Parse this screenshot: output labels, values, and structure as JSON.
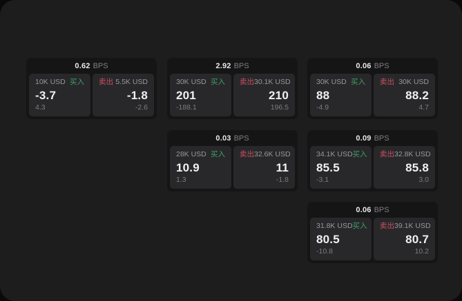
{
  "labels": {
    "unit": "BPS",
    "buy": "买入",
    "sell": "卖出"
  },
  "colors": {
    "outer_bg": "#0a0a0a",
    "window_bg": "#1d1d1e",
    "card_bg": "#151516",
    "panel_bg": "#28282a",
    "buy_green": "#3da065",
    "sell_red": "#c95063"
  },
  "cards": [
    {
      "bps": "0.62",
      "col": 1,
      "row": 1,
      "buy": {
        "amount": "10K USD",
        "value": "-3.7",
        "sub": "4.3"
      },
      "sell": {
        "amount": "5.5K USD",
        "value": "-1.8",
        "sub": "-2.6"
      }
    },
    {
      "bps": "2.92",
      "col": 2,
      "row": 1,
      "buy": {
        "amount": "30K USD",
        "value": "201",
        "sub": "-188.1"
      },
      "sell": {
        "amount": "30.1K USD",
        "value": "210",
        "sub": "196.5"
      }
    },
    {
      "bps": "0.03",
      "col": 2,
      "row": 2,
      "buy": {
        "amount": "28K USD",
        "value": "10.9",
        "sub": "1.3"
      },
      "sell": {
        "amount": "32.6K USD",
        "value": "11",
        "sub": "-1.8"
      }
    },
    {
      "bps": "0.06",
      "col": 3,
      "row": 1,
      "buy": {
        "amount": "30K USD",
        "value": "88",
        "sub": "-4.9"
      },
      "sell": {
        "amount": "30K USD",
        "value": "88.2",
        "sub": "4.7"
      }
    },
    {
      "bps": "0.09",
      "col": 3,
      "row": 2,
      "buy": {
        "amount": "34.1K USD",
        "value": "85.5",
        "sub": "-3.1"
      },
      "sell": {
        "amount": "32.8K USD",
        "value": "85.8",
        "sub": "3.0"
      }
    },
    {
      "bps": "0.06",
      "col": 3,
      "row": 3,
      "buy": {
        "amount": "31.8K USD",
        "value": "80.5",
        "sub": "-10.8"
      },
      "sell": {
        "amount": "39.1K USD",
        "value": "80.7",
        "sub": "10.2"
      }
    }
  ]
}
